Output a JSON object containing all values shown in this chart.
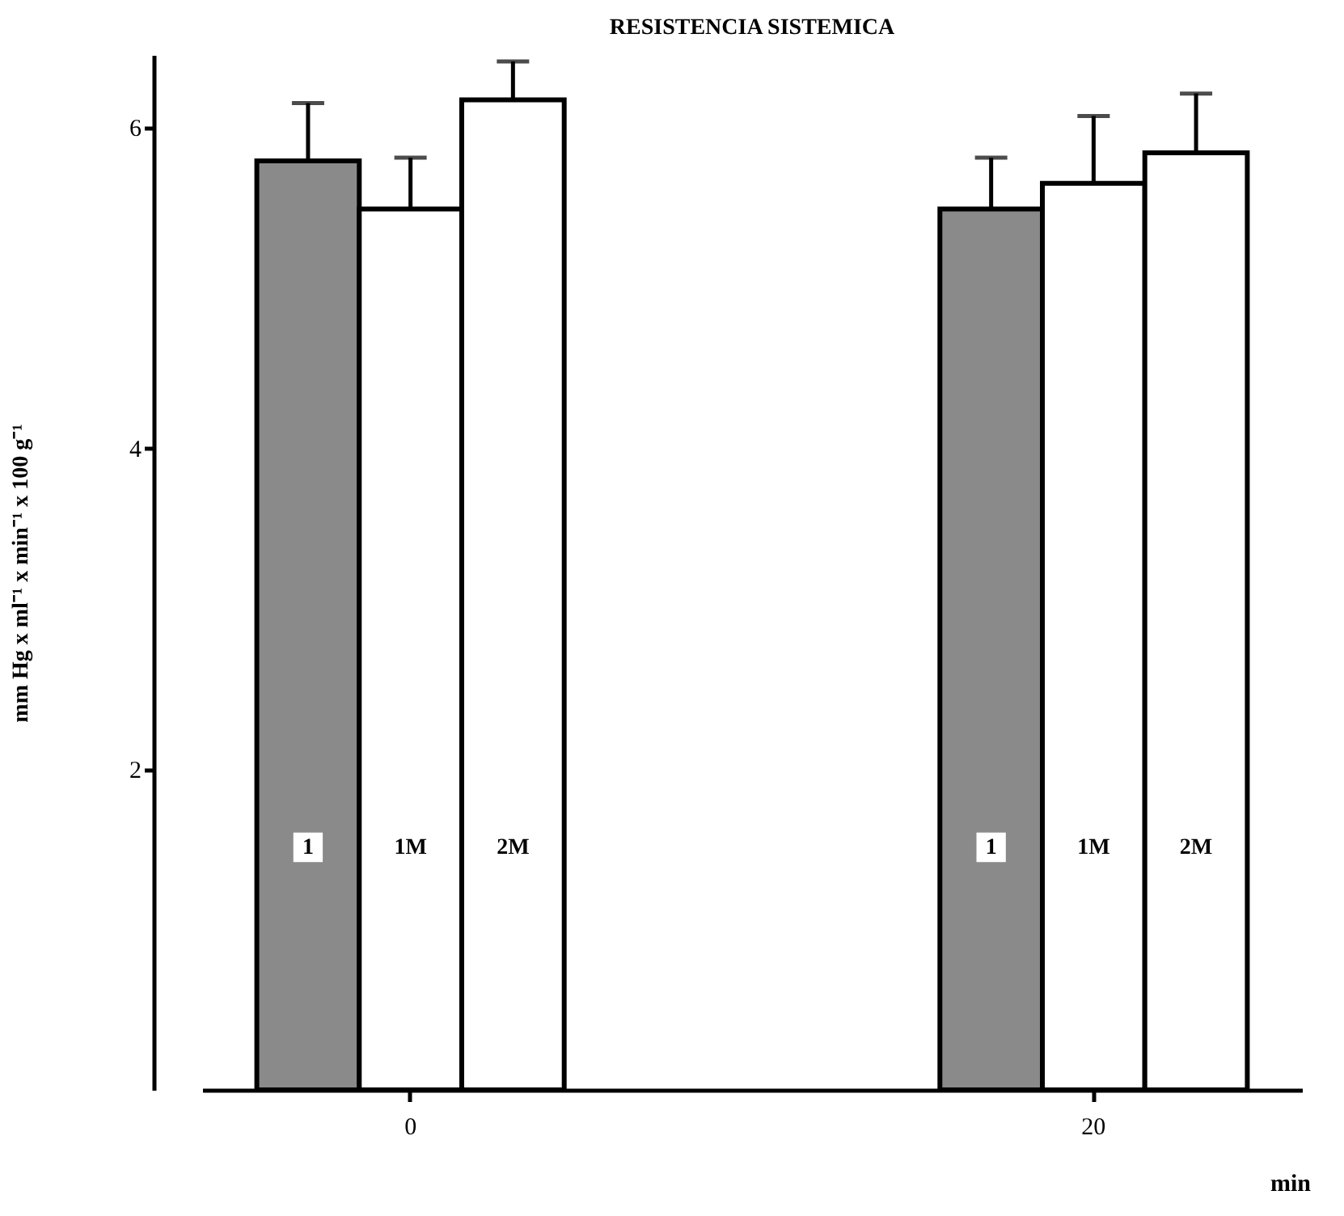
{
  "chart_data": {
    "type": "bar",
    "title": "RESISTENCIA SISTEMICA",
    "xlabel": "min",
    "ylabel": "mm Hg x ml⁻¹ x min⁻¹ x 100 g⁻¹",
    "categories": [
      "0",
      "20"
    ],
    "series": [
      {
        "name": "1",
        "color": "#8a8a8a",
        "values": [
          5.79,
          5.49
        ],
        "errors": [
          [
            5.79,
            6.15
          ],
          [
            5.49,
            5.81
          ]
        ]
      },
      {
        "name": "1M",
        "color": "#ffffff",
        "values": [
          5.49,
          5.65
        ],
        "errors": [
          [
            5.49,
            5.81
          ],
          [
            5.65,
            6.07
          ]
        ]
      },
      {
        "name": "2M",
        "color": "#ffffff",
        "values": [
          6.17,
          5.84
        ],
        "errors": [
          [
            6.17,
            6.41
          ],
          [
            5.84,
            6.21
          ]
        ]
      }
    ],
    "ylim": [
      0,
      6.45
    ],
    "yticks": [
      2,
      4,
      6
    ],
    "grid": false,
    "legend": false
  }
}
